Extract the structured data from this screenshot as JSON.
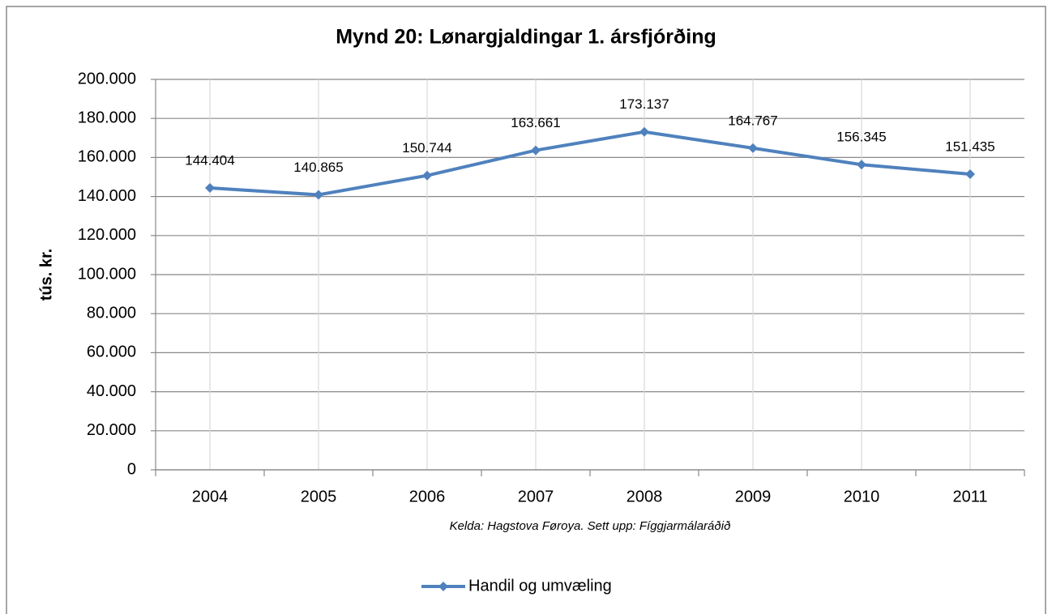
{
  "chart_data": {
    "type": "line",
    "title": "Mynd 20: Lønargjaldingar 1. ársfjórðing",
    "y_label": "tús. kr.",
    "annotation": "Kelda: Hagstova Føroya. Sett upp: Fíggjarmálaráðið",
    "categories": [
      "2004",
      "2005",
      "2006",
      "2007",
      "2008",
      "2009",
      "2010",
      "2011"
    ],
    "series": [
      {
        "name": "Handil og umvæling",
        "color": "#4f81bd",
        "values": [
          144404,
          140865,
          150744,
          163661,
          173137,
          164767,
          156345,
          151435
        ],
        "value_labels": [
          "144.404",
          "140.865",
          "150.744",
          "163.661",
          "173.137",
          "164.767",
          "156.345",
          "151.435"
        ]
      }
    ],
    "ylim": [
      0,
      200000
    ],
    "yticks": [
      0,
      {
        "value": 20000,
        "label": "20.000"
      },
      {
        "value": 40000,
        "label": "40.000"
      },
      {
        "value": 60000,
        "label": "60.000"
      },
      {
        "value": 80000,
        "label": "80.000"
      },
      {
        "value": 100000,
        "label": "100.000"
      },
      {
        "value": 120000,
        "label": "120.000"
      },
      {
        "value": 140000,
        "label": "140.000"
      },
      {
        "value": 160000,
        "label": "160.000"
      },
      {
        "value": 180000,
        "label": "180.000"
      },
      {
        "value": 200000,
        "label": "200.000"
      }
    ],
    "grid": true,
    "legend": "bottom"
  }
}
